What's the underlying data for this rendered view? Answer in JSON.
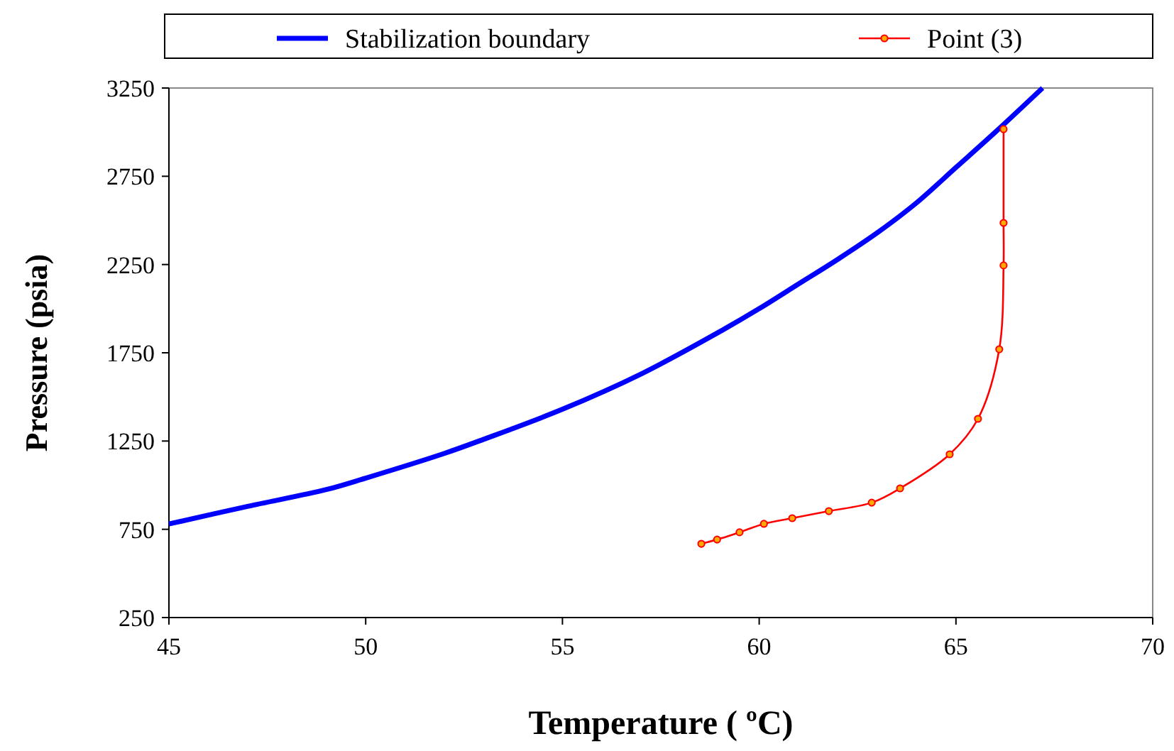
{
  "chart_data": {
    "type": "line",
    "xlabel": "Temperature ( ºC)",
    "ylabel": "Pressure (psia)",
    "xlim": [
      45,
      70
    ],
    "xticks": [
      45,
      50,
      55,
      60,
      65,
      70
    ],
    "ylim": [
      250,
      3250
    ],
    "yticks": [
      250,
      750,
      1250,
      1750,
      2250,
      2750,
      3250
    ],
    "grid": false,
    "legend": "top",
    "series": [
      {
        "name": "Stabilization boundary",
        "color": "#0000ff",
        "marker": "none",
        "x": [
          45,
          47,
          49,
          50,
          52,
          53,
          55,
          57,
          59,
          60,
          61,
          62,
          63,
          64,
          65,
          66,
          67.2
        ],
        "values": [
          780,
          880,
          975,
          1040,
          1180,
          1260,
          1430,
          1630,
          1870,
          2000,
          2140,
          2280,
          2430,
          2600,
          2800,
          3000,
          3250
        ]
      },
      {
        "name": "Point (3)",
        "color": "#ff0000",
        "marker": "circle",
        "x": [
          58.53,
          58.93,
          59.5,
          60.12,
          60.84,
          61.77,
          62.86,
          63.58,
          64.84,
          65.56,
          66.1,
          66.21,
          66.21,
          66.21
        ],
        "values": [
          668,
          692,
          733,
          781,
          813,
          853,
          901,
          982,
          1175,
          1376,
          1770,
          2245,
          2486,
          3017
        ]
      }
    ]
  }
}
